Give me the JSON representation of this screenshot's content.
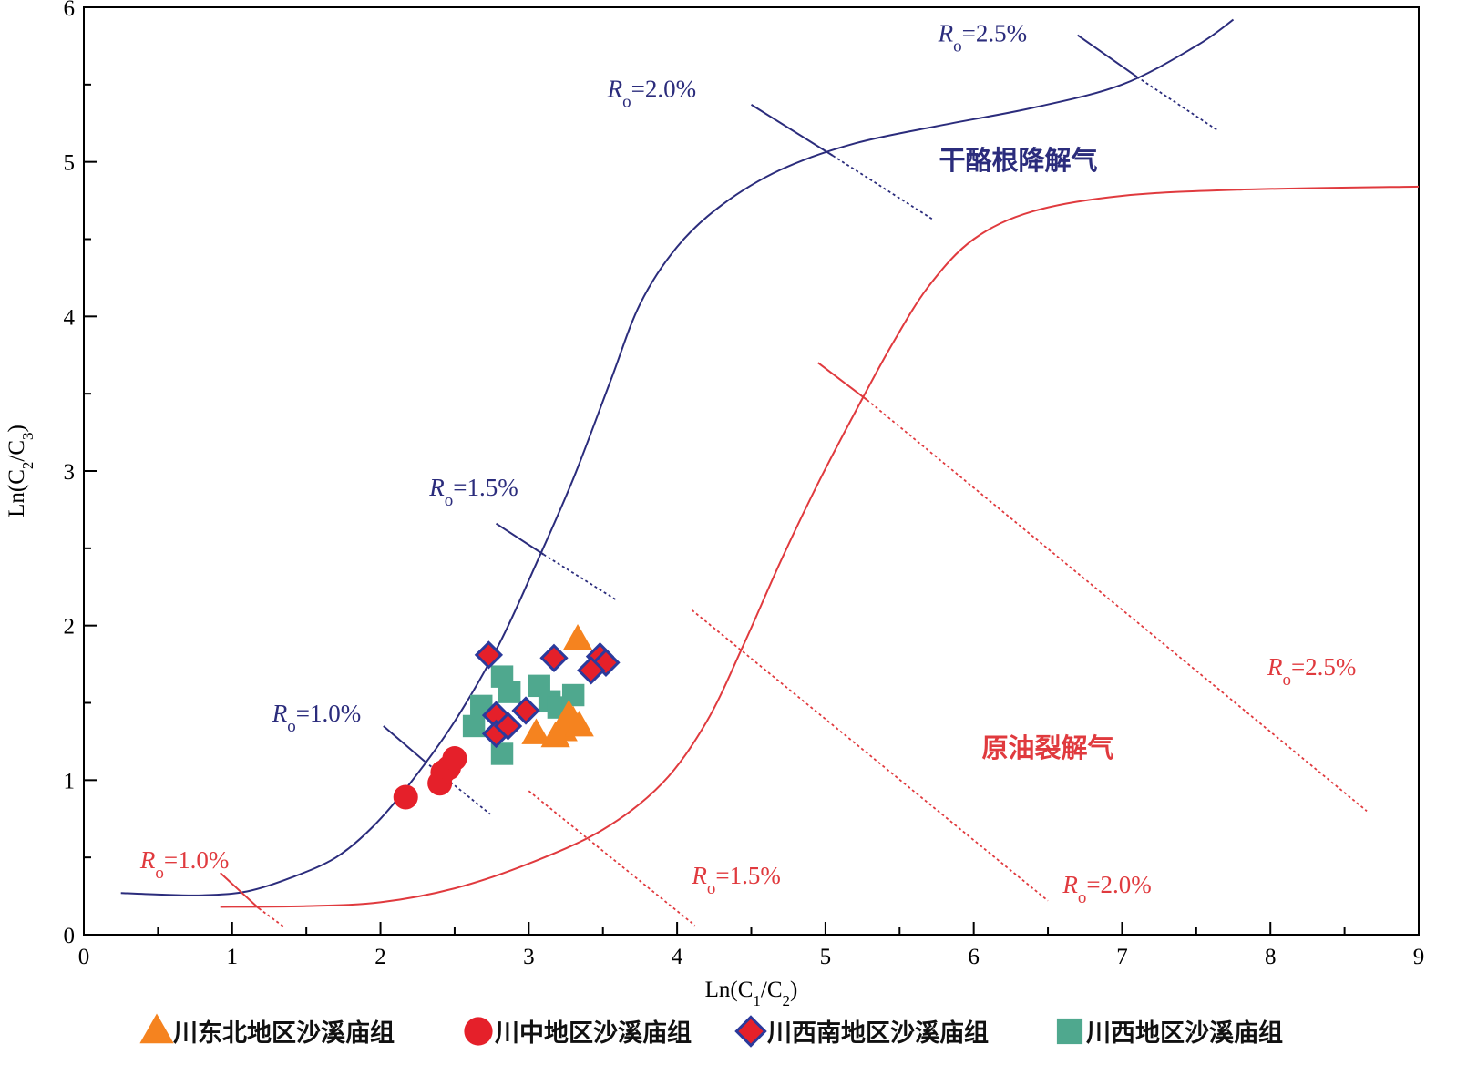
{
  "chart_data": {
    "type": "scatter",
    "xlabel": "Ln(C1/C2)",
    "ylabel": "Ln(C2/C3)",
    "xlim": [
      0,
      9
    ],
    "ylim": [
      0,
      6
    ],
    "x_ticks": [
      "0",
      "1",
      "2",
      "3",
      "4",
      "5",
      "6",
      "7",
      "8",
      "9"
    ],
    "y_ticks": [
      "0",
      "1",
      "2",
      "3",
      "4",
      "5",
      "6"
    ],
    "curves": [
      {
        "name": "干酪根降解气",
        "color": "#2b2c7c",
        "points": [
          [
            0.25,
            0.27
          ],
          [
            0.5,
            0.26
          ],
          [
            0.8,
            0.255
          ],
          [
            1.1,
            0.28
          ],
          [
            1.4,
            0.37
          ],
          [
            1.7,
            0.5
          ],
          [
            1.95,
            0.7
          ],
          [
            2.2,
            0.98
          ],
          [
            2.5,
            1.38
          ],
          [
            2.8,
            1.88
          ],
          [
            3.05,
            2.4
          ],
          [
            3.3,
            2.95
          ],
          [
            3.55,
            3.58
          ],
          [
            3.75,
            4.08
          ],
          [
            4.0,
            4.45
          ],
          [
            4.3,
            4.72
          ],
          [
            4.7,
            4.95
          ],
          [
            5.2,
            5.12
          ],
          [
            5.8,
            5.24
          ],
          [
            6.4,
            5.35
          ],
          [
            7.0,
            5.5
          ],
          [
            7.5,
            5.75
          ],
          [
            7.75,
            5.92
          ]
        ]
      },
      {
        "name": "原油裂解气",
        "color": "#e03a3e",
        "points": [
          [
            0.92,
            0.18
          ],
          [
            1.5,
            0.185
          ],
          [
            2.0,
            0.21
          ],
          [
            2.5,
            0.3
          ],
          [
            3.0,
            0.46
          ],
          [
            3.5,
            0.68
          ],
          [
            3.9,
            0.98
          ],
          [
            4.2,
            1.38
          ],
          [
            4.45,
            1.88
          ],
          [
            4.7,
            2.42
          ],
          [
            4.95,
            2.92
          ],
          [
            5.2,
            3.38
          ],
          [
            5.45,
            3.82
          ],
          [
            5.7,
            4.2
          ],
          [
            6.0,
            4.5
          ],
          [
            6.4,
            4.68
          ],
          [
            7.0,
            4.78
          ],
          [
            7.8,
            4.82
          ],
          [
            9.0,
            4.84
          ]
        ]
      }
    ],
    "ro_lines": [
      {
        "label_R": "R",
        "label_sub": "o",
        "label_val": "=1.0%",
        "color": "#2b2c7c",
        "lx": 1.27,
        "ly": 1.38,
        "solid": [
          [
            2.02,
            1.35
          ],
          [
            2.3,
            1.12
          ]
        ],
        "dash": [
          [
            2.3,
            1.12
          ],
          [
            2.74,
            0.78
          ]
        ]
      },
      {
        "label_R": "R",
        "label_sub": "o",
        "label_val": "=1.5%",
        "color": "#2b2c7c",
        "lx": 2.33,
        "ly": 2.84,
        "solid": [
          [
            2.78,
            2.66
          ],
          [
            3.1,
            2.46
          ]
        ],
        "dash": [
          [
            3.1,
            2.46
          ],
          [
            3.6,
            2.16
          ]
        ]
      },
      {
        "label_R": "R",
        "label_sub": "o",
        "label_val": "=2.0%",
        "color": "#2b2c7c",
        "lx": 3.53,
        "ly": 5.42,
        "solid": [
          [
            4.5,
            5.37
          ],
          [
            5.05,
            5.04
          ]
        ],
        "dash": [
          [
            5.05,
            5.04
          ],
          [
            5.72,
            4.63
          ]
        ]
      },
      {
        "label_R": "R",
        "label_sub": "o",
        "label_val": "=2.5%",
        "color": "#2b2c7c",
        "lx": 5.76,
        "ly": 5.78,
        "solid": [
          [
            6.7,
            5.82
          ],
          [
            7.1,
            5.55
          ]
        ],
        "dash": [
          [
            7.1,
            5.55
          ],
          [
            7.65,
            5.2
          ]
        ]
      },
      {
        "label_R": "R",
        "label_sub": "o",
        "label_val": "=1.0%",
        "color": "#e03a3e",
        "lx": 0.38,
        "ly": 0.43,
        "solid": [
          [
            0.92,
            0.4
          ],
          [
            1.18,
            0.17
          ]
        ],
        "dash": [
          [
            1.18,
            0.17
          ],
          [
            1.35,
            0.05
          ]
        ]
      },
      {
        "label_R": "R",
        "label_sub": "o",
        "label_val": "=1.5%",
        "color": "#e03a3e",
        "lx": 4.1,
        "ly": 0.33,
        "solid": [],
        "dash": [
          [
            3.0,
            0.93
          ],
          [
            4.12,
            0.06
          ]
        ]
      },
      {
        "label_R": "R",
        "label_sub": "o",
        "label_val": "=2.0%",
        "color": "#e03a3e",
        "lx": 6.6,
        "ly": 0.27,
        "solid": [],
        "dash": [
          [
            4.1,
            2.1
          ],
          [
            6.5,
            0.22
          ]
        ]
      },
      {
        "label_R": "R",
        "label_sub": "o",
        "label_val": "=2.5%",
        "color": "#e03a3e",
        "lx": 7.98,
        "ly": 1.68,
        "solid": [
          [
            4.95,
            3.7
          ],
          [
            5.28,
            3.46
          ]
        ],
        "dash": [
          [
            5.28,
            3.46
          ],
          [
            8.65,
            0.8
          ]
        ]
      }
    ],
    "regions": [
      {
        "label": "干酪根降解气",
        "color": "#2b2c7c",
        "x": 6.3,
        "y": 4.95
      },
      {
        "label": "原油裂解气",
        "color": "#e03a3e",
        "x": 6.5,
        "y": 1.15
      }
    ],
    "series": [
      {
        "name": "川东北地区沙溪庙组",
        "marker": "triangle",
        "color": "#f5831f",
        "points": [
          [
            3.33,
            1.91
          ],
          [
            3.05,
            1.3
          ],
          [
            3.18,
            1.28
          ],
          [
            3.23,
            1.32
          ],
          [
            3.3,
            1.38
          ],
          [
            3.34,
            1.35
          ],
          [
            3.27,
            1.42
          ]
        ]
      },
      {
        "name": "川中地区沙溪庙组",
        "marker": "circle",
        "color": "#e5202a",
        "points": [
          [
            2.17,
            0.89
          ],
          [
            2.4,
            0.98
          ],
          [
            2.42,
            1.05
          ],
          [
            2.46,
            1.08
          ],
          [
            2.5,
            1.14
          ]
        ]
      },
      {
        "name": "川西南地区沙溪庙组",
        "marker": "diamond",
        "color": "#e5202a",
        "edge": "#2b3a9c",
        "points": [
          [
            2.73,
            1.81
          ],
          [
            3.17,
            1.79
          ],
          [
            3.48,
            1.8
          ],
          [
            3.52,
            1.76
          ],
          [
            3.42,
            1.71
          ],
          [
            2.78,
            1.42
          ],
          [
            2.98,
            1.45
          ],
          [
            2.78,
            1.3
          ],
          [
            2.86,
            1.35
          ]
        ]
      },
      {
        "name": "川西地区沙溪庙组",
        "marker": "square",
        "color": "#4fa88e",
        "points": [
          [
            2.63,
            1.35
          ],
          [
            2.68,
            1.48
          ],
          [
            2.82,
            1.67
          ],
          [
            2.87,
            1.57
          ],
          [
            2.82,
            1.17
          ],
          [
            3.07,
            1.61
          ],
          [
            3.14,
            1.51
          ],
          [
            3.2,
            1.47
          ],
          [
            3.3,
            1.55
          ]
        ]
      }
    ]
  }
}
